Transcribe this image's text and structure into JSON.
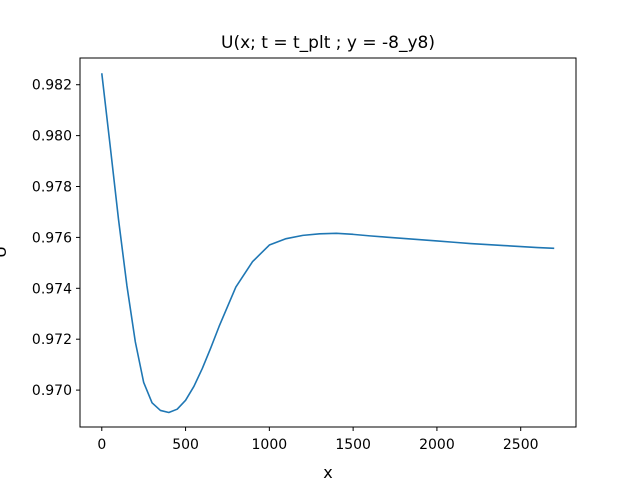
{
  "chart_data": {
    "type": "line",
    "title": "U(x; t = t_plt ; y = -8_y8)",
    "xlabel": "x",
    "ylabel": "U",
    "xlim": [
      -130,
      2830
    ],
    "ylim": [
      0.96855,
      0.98305
    ],
    "xticks": [
      0,
      500,
      1000,
      1500,
      2000,
      2500
    ],
    "xtick_labels": [
      "0",
      "500",
      "1000",
      "1500",
      "2000",
      "2500"
    ],
    "yticks": [
      0.97,
      0.972,
      0.974,
      0.976,
      0.978,
      0.98,
      0.982
    ],
    "ytick_labels": [
      "0.970",
      "0.972",
      "0.974",
      "0.976",
      "0.978",
      "0.980",
      "0.982"
    ],
    "grid": false,
    "series": [
      {
        "color": "#1f77b4",
        "x": [
          0,
          50,
          100,
          150,
          200,
          250,
          300,
          350,
          400,
          450,
          500,
          550,
          600,
          650,
          700,
          800,
          900,
          1000,
          1100,
          1200,
          1300,
          1400,
          1500,
          1600,
          1700,
          1800,
          1900,
          2000,
          2100,
          2200,
          2300,
          2400,
          2500,
          2600,
          2700
        ],
        "y": [
          0.98245,
          0.9796,
          0.9767,
          0.9741,
          0.9719,
          0.9703,
          0.9695,
          0.9692,
          0.96912,
          0.96925,
          0.9696,
          0.97015,
          0.97085,
          0.97165,
          0.9725,
          0.97405,
          0.97505,
          0.9757,
          0.97595,
          0.97608,
          0.97614,
          0.97616,
          0.97612,
          0.97606,
          0.97601,
          0.97596,
          0.97591,
          0.97586,
          0.97581,
          0.97576,
          0.97572,
          0.97568,
          0.97564,
          0.9756,
          0.97557
        ]
      }
    ]
  }
}
